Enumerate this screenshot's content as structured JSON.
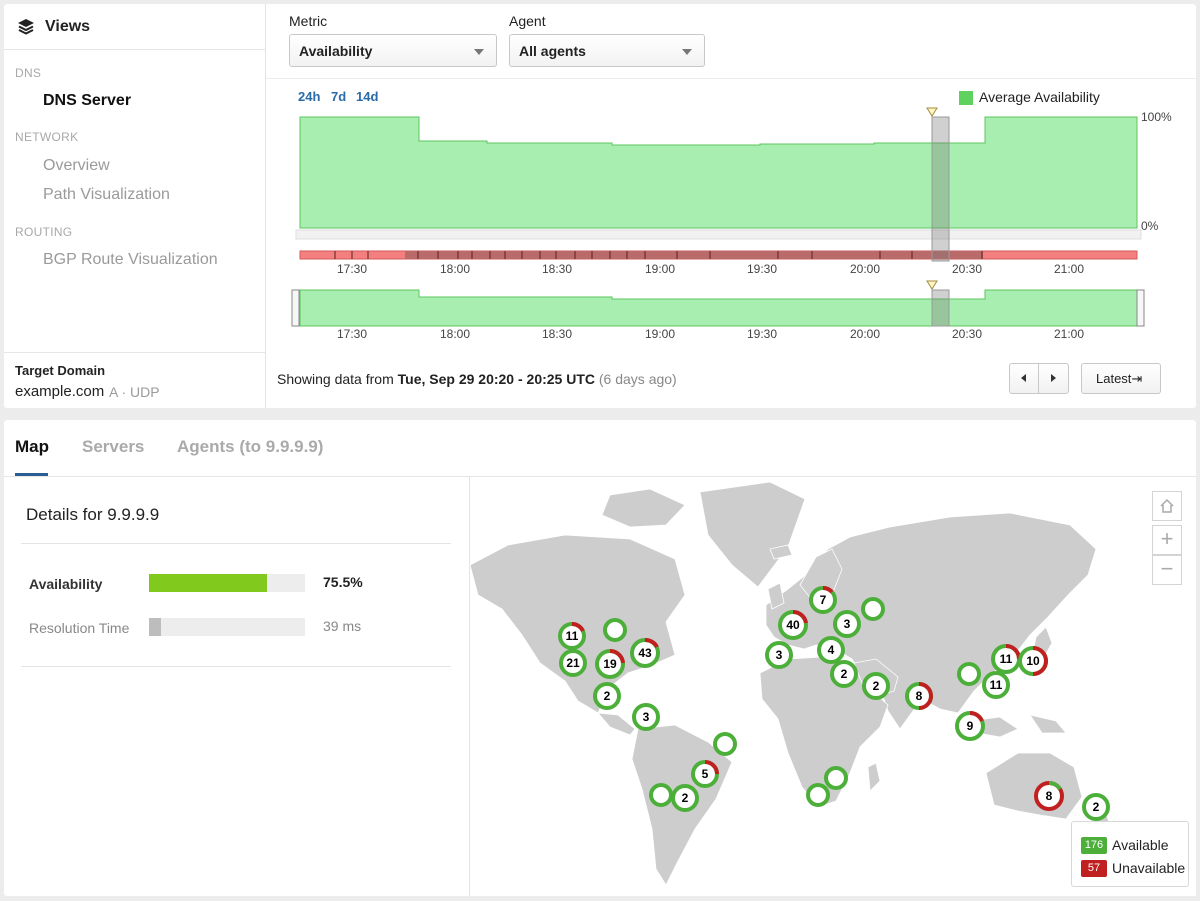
{
  "sidebar": {
    "views_title": "Views",
    "sections": [
      {
        "label": "DNS",
        "items": [
          "DNS Server"
        ]
      },
      {
        "label": "NETWORK",
        "items": [
          "Overview",
          "Path Visualization"
        ]
      },
      {
        "label": "ROUTING",
        "items": [
          "BGP Route Visualization"
        ]
      }
    ],
    "target_label": "Target Domain",
    "target_domain": "example.com",
    "target_meta": "A · UDP"
  },
  "selectors": {
    "metric_label": "Metric",
    "metric_value": "Availability",
    "agent_label": "Agent",
    "agent_value": "All agents"
  },
  "timeline": {
    "ranges": [
      "24h",
      "7d",
      "14d"
    ],
    "legend": "Average Availability",
    "y_top": "100%",
    "y_bottom": "0%",
    "ticks": [
      "17:30",
      "18:00",
      "18:30",
      "19:00",
      "19:30",
      "20:00",
      "20:30",
      "21:00"
    ],
    "showing_prefix": "Showing data from",
    "showing_range": "Tue, Sep 29 20:20 - 20:25 UTC",
    "showing_ago": "(6 days ago)",
    "latest_label": "Latest⇥"
  },
  "chart_data": {
    "type": "area",
    "series": [
      {
        "name": "Average Availability",
        "color": "#a8eeb0"
      }
    ],
    "x": [
      "17:05",
      "17:40",
      "17:45",
      "18:10",
      "18:15",
      "19:40",
      "20:10",
      "20:25",
      "20:35",
      "21:10"
    ],
    "values": [
      100,
      79,
      79,
      78,
      77,
      76,
      76,
      76,
      100,
      100
    ],
    "ylim": [
      0,
      100
    ],
    "selected_window": "20:20 - 20:25"
  },
  "tabs": [
    "Map",
    "Servers",
    "Agents (to 9.9.9.9)"
  ],
  "details": {
    "title": "Details for 9.9.9.9",
    "availability_label": "Availability",
    "availability_value": "75.5%",
    "availability_fraction": 0.755,
    "availability_color": "#82c91e",
    "resolution_label": "Resolution Time",
    "resolution_value": "39 ms",
    "resolution_fraction": 0.08
  },
  "map": {
    "zoom_in": "+",
    "zoom_out": "−",
    "legend": [
      {
        "count": "176",
        "label": "Available",
        "color": "#4caf3a"
      },
      {
        "count": "57",
        "label": "Unavailable",
        "color": "#c0201f"
      }
    ],
    "clusters": [
      "11",
      "21",
      "19",
      "43",
      "2",
      "3",
      "5",
      "2",
      "7",
      "40",
      "3",
      "3",
      "4",
      "2",
      "2",
      "8",
      "11",
      "10",
      "11",
      "9",
      "8",
      "2"
    ]
  }
}
